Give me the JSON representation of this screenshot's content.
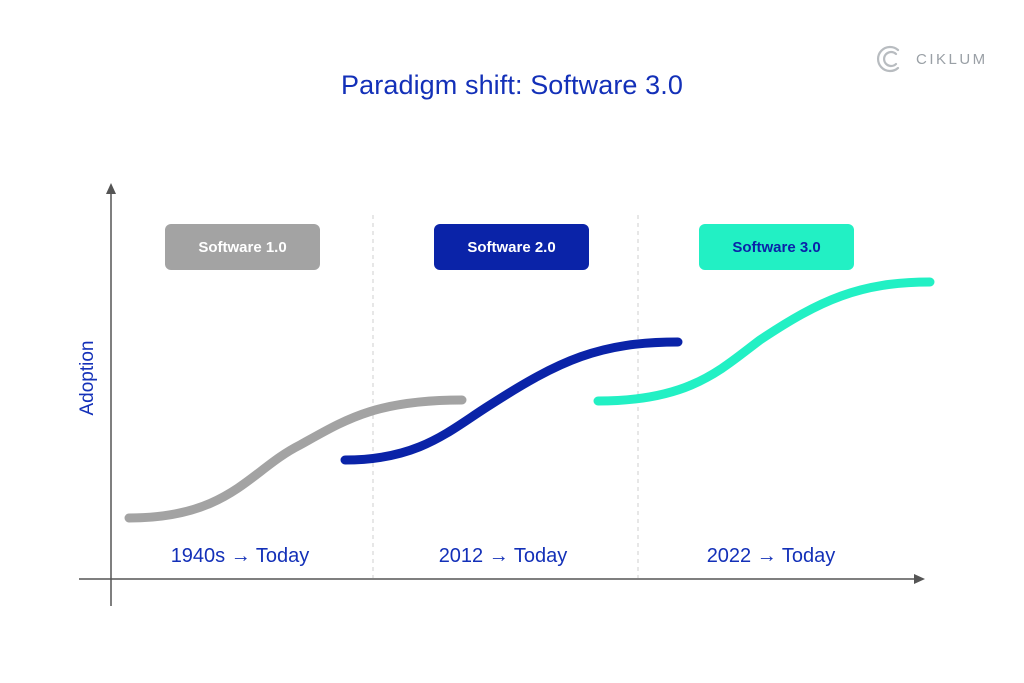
{
  "title": "Paradigm shift: Software 3.0",
  "logo": {
    "text": "CIKLUM"
  },
  "axis": {
    "ylabel": "Adoption"
  },
  "paradigms": [
    {
      "label": "Software 1.0",
      "period": "1940s → Today",
      "color": "#a3a3a3"
    },
    {
      "label": "Software 2.0",
      "period": "2012 → Today",
      "color": "#0a23a8"
    },
    {
      "label": "Software 3.0",
      "period": "2022 → Today",
      "color": "#22f0c4"
    }
  ]
}
